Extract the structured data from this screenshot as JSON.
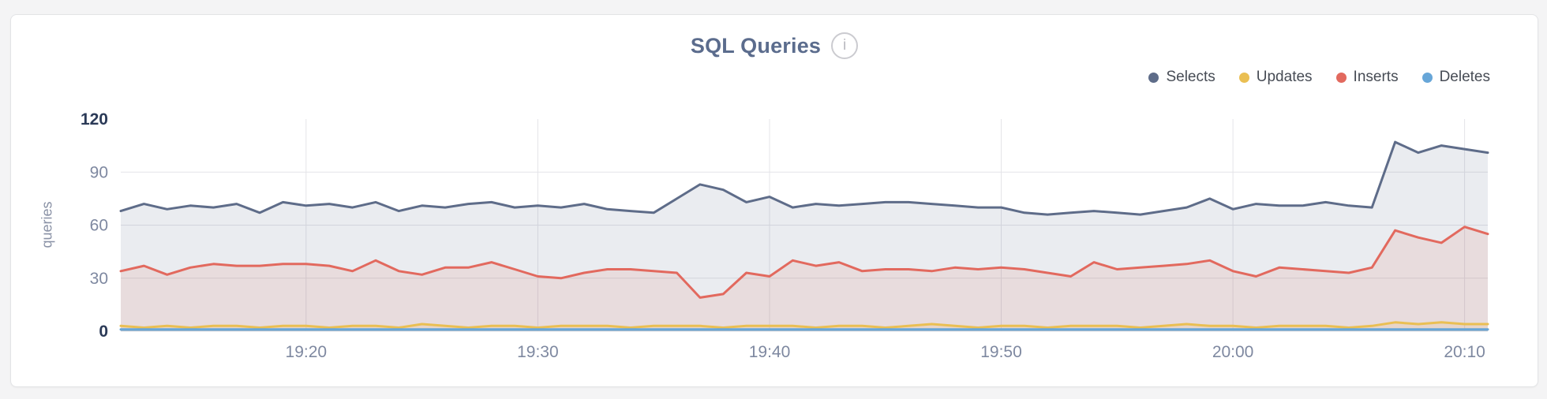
{
  "header": {
    "title": "SQL Queries",
    "info_glyph": "i"
  },
  "chart_data": {
    "type": "area",
    "title": "SQL Queries",
    "ylabel": "queries",
    "ylim": [
      0,
      120
    ],
    "yticks": [
      0,
      30,
      60,
      90,
      120
    ],
    "emphasized_yticks": [
      0,
      120
    ],
    "grid": true,
    "legend_position": "top-right",
    "x_start": "19:12",
    "x_interval_minutes": 1,
    "xtick_labels": [
      "19:20",
      "19:30",
      "19:40",
      "19:50",
      "20:00",
      "20:10"
    ],
    "series": [
      {
        "name": "Selects",
        "color": "#5e6c89",
        "fill_opacity": 0.13,
        "values": [
          68,
          72,
          69,
          71,
          70,
          72,
          67,
          73,
          71,
          72,
          70,
          73,
          68,
          71,
          70,
          72,
          73,
          70,
          71,
          70,
          72,
          69,
          68,
          67,
          75,
          83,
          80,
          73,
          76,
          70,
          72,
          71,
          72,
          73,
          73,
          72,
          71,
          70,
          70,
          67,
          66,
          67,
          68,
          67,
          66,
          68,
          70,
          75,
          69,
          72,
          71,
          71,
          73,
          71,
          70,
          107,
          101,
          105,
          103,
          101
        ]
      },
      {
        "name": "Updates",
        "color": "#eabf53",
        "fill_opacity": 0.15,
        "values": [
          3,
          2,
          3,
          2,
          3,
          3,
          2,
          3,
          3,
          2,
          3,
          3,
          2,
          4,
          3,
          2,
          3,
          3,
          2,
          3,
          3,
          3,
          2,
          3,
          3,
          3,
          2,
          3,
          3,
          3,
          2,
          3,
          3,
          2,
          3,
          4,
          3,
          2,
          3,
          3,
          2,
          3,
          3,
          3,
          2,
          3,
          4,
          3,
          3,
          2,
          3,
          3,
          3,
          2,
          3,
          5,
          4,
          5,
          4,
          4
        ]
      },
      {
        "name": "Inserts",
        "color": "#e2695e",
        "fill_opacity": 0.12,
        "values": [
          34,
          37,
          32,
          36,
          38,
          37,
          37,
          38,
          38,
          37,
          34,
          40,
          34,
          32,
          36,
          36,
          39,
          35,
          31,
          30,
          33,
          35,
          35,
          34,
          33,
          19,
          21,
          33,
          31,
          40,
          37,
          39,
          34,
          35,
          35,
          34,
          36,
          35,
          36,
          35,
          33,
          31,
          39,
          35,
          36,
          37,
          38,
          40,
          34,
          31,
          36,
          35,
          34,
          33,
          36,
          57,
          53,
          50,
          59,
          55
        ]
      },
      {
        "name": "Deletes",
        "color": "#67a6d8",
        "fill_opacity": 0.35,
        "values": [
          1,
          1,
          1,
          1,
          1,
          1,
          1,
          1,
          1,
          1,
          1,
          1,
          1,
          1,
          1,
          1,
          1,
          1,
          1,
          1,
          1,
          1,
          1,
          1,
          1,
          1,
          1,
          1,
          1,
          1,
          1,
          1,
          1,
          1,
          1,
          1,
          1,
          1,
          1,
          1,
          1,
          1,
          1,
          1,
          1,
          1,
          1,
          1,
          1,
          1,
          1,
          1,
          1,
          1,
          1,
          1,
          1,
          1,
          1,
          1
        ]
      }
    ]
  }
}
